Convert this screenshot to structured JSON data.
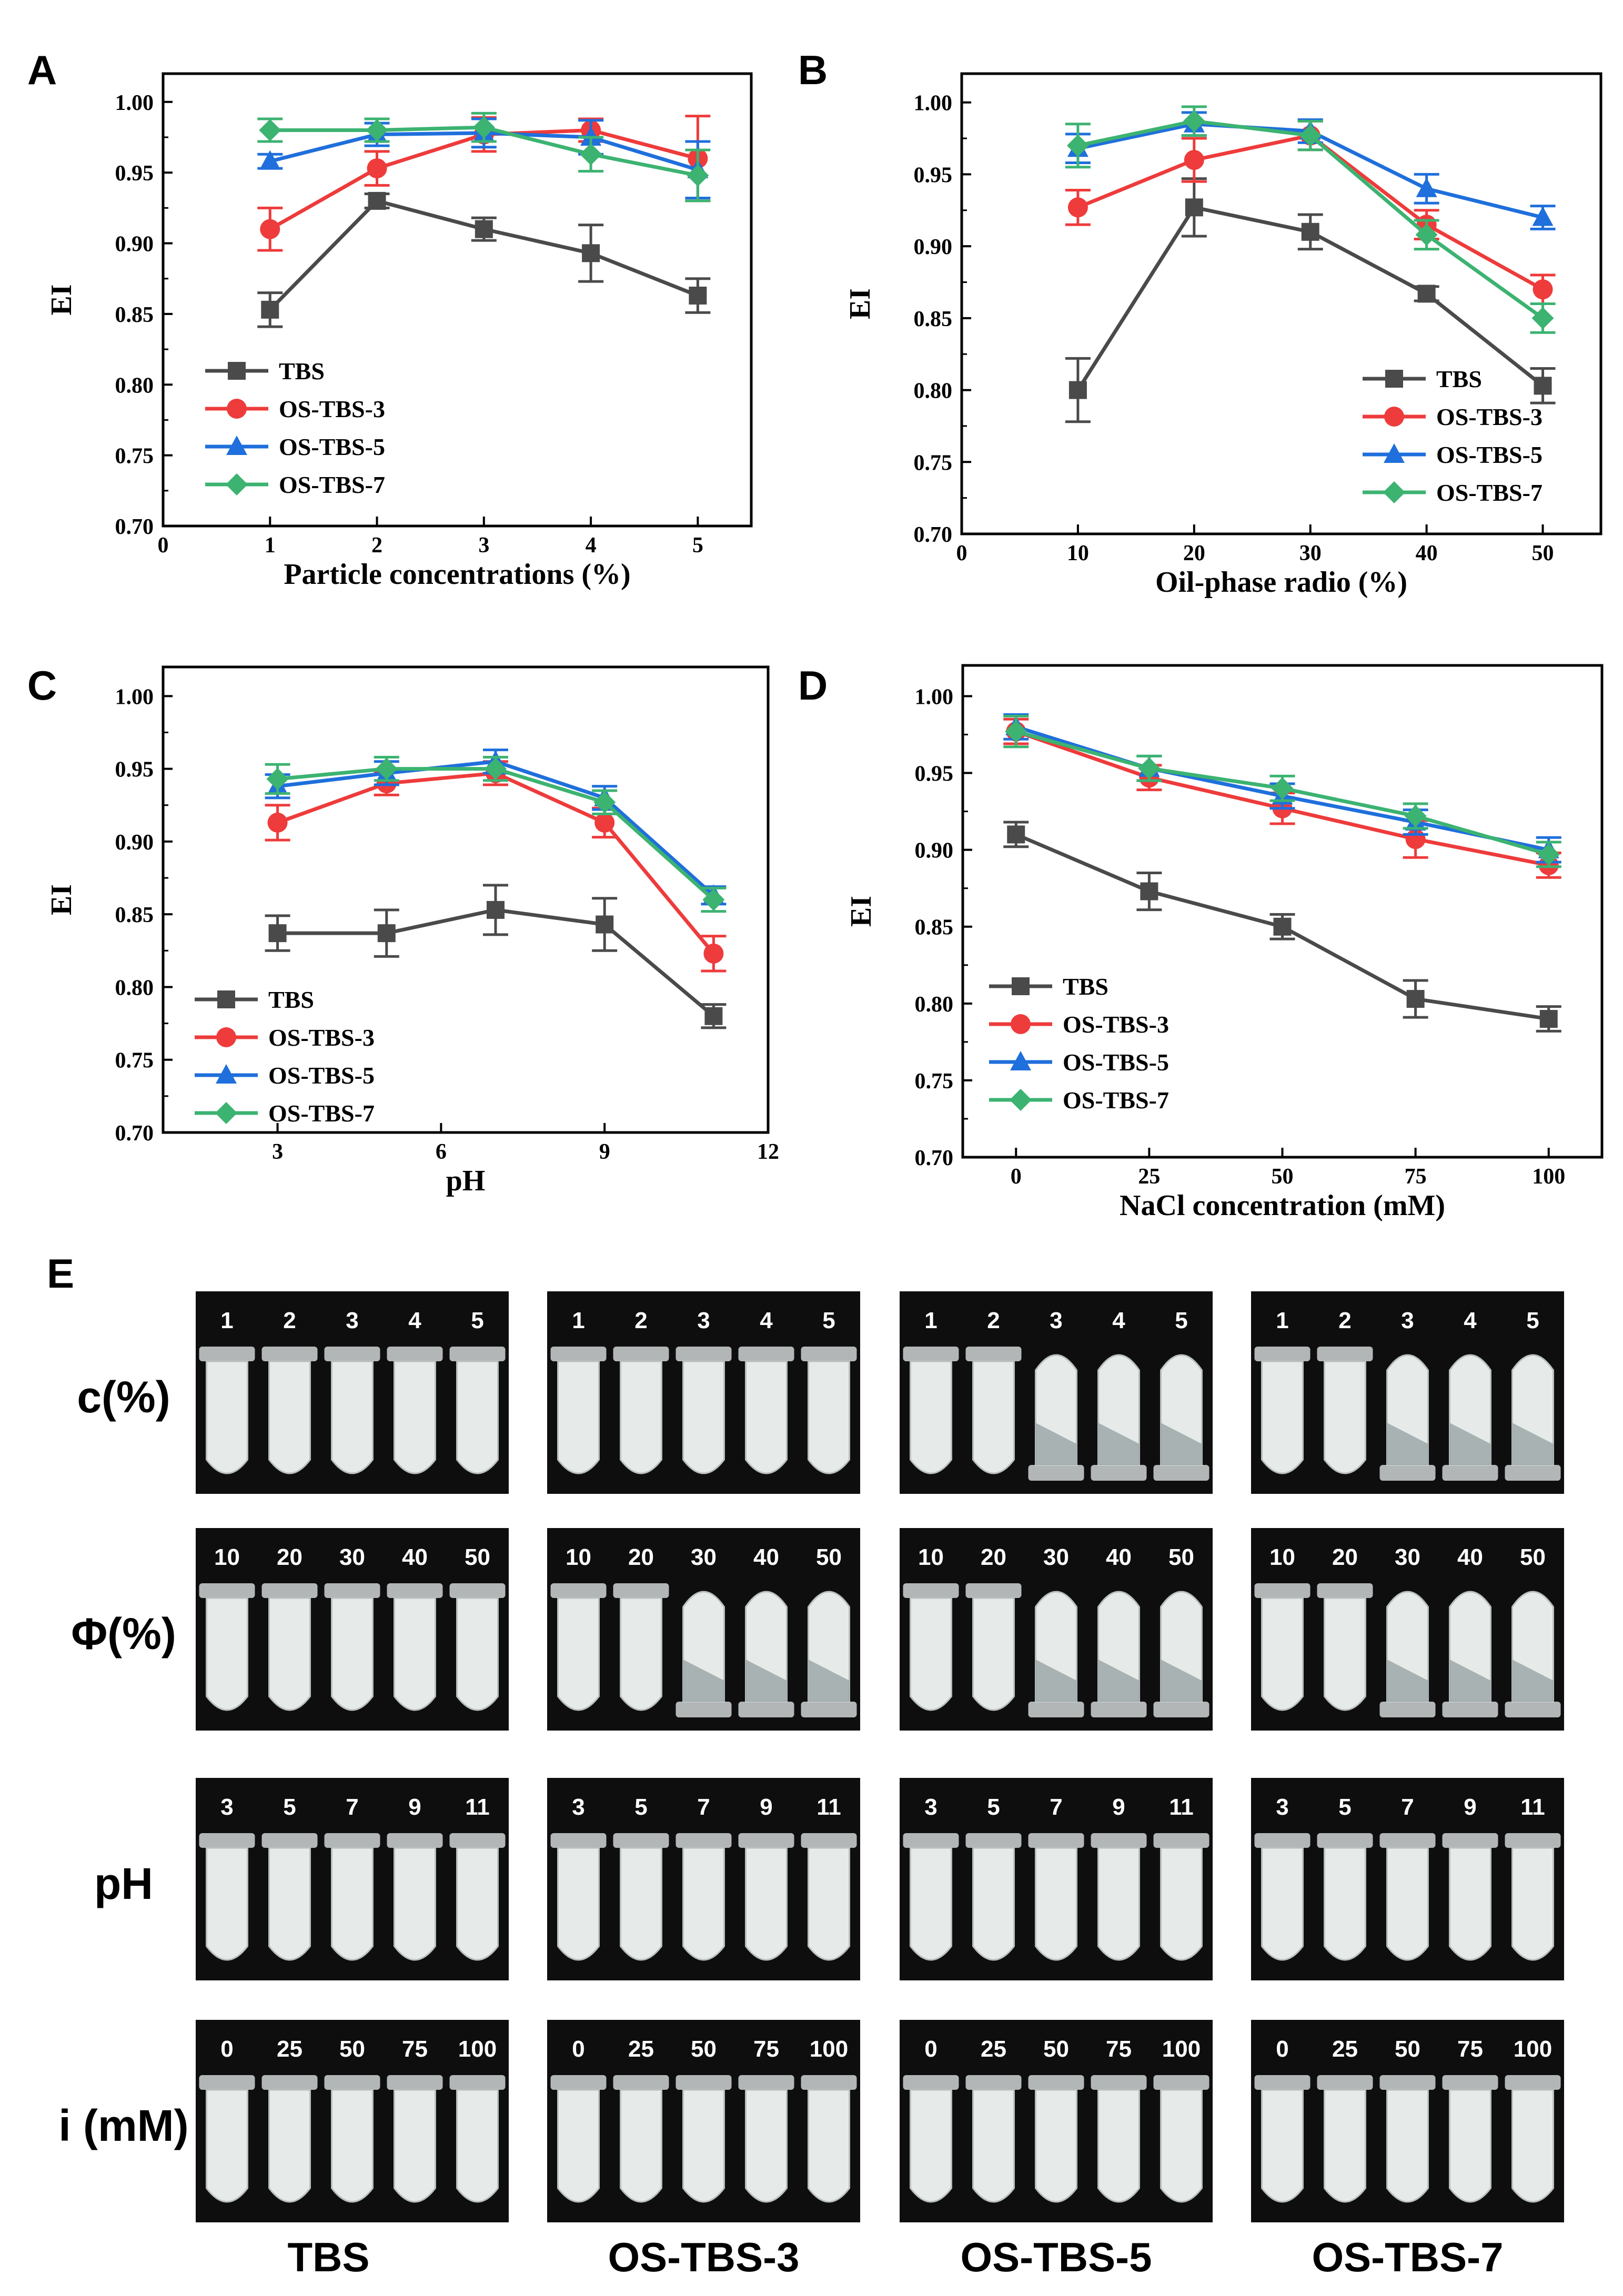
{
  "colors": {
    "TBS": "#4a4a4a",
    "OS-TBS-3": "#ee3b3b",
    "OS-TBS-5": "#1f6fdc",
    "OS-TBS-7": "#3cb371",
    "photo_bg": "#0e0e0e",
    "tube_fill": "#e6eae8",
    "tube_wall": "#b9bfbf"
  },
  "chart_data": [
    {
      "panel": "A",
      "type": "line",
      "title": "",
      "xlabel": "Particle concentrations (%)",
      "ylabel": "EI",
      "xlim": [
        0,
        5.5
      ],
      "ylim": [
        0.7,
        1.02
      ],
      "xticks": [
        0,
        1,
        2,
        3,
        4,
        5
      ],
      "xtick_labels": [
        "0",
        "1",
        "2",
        "3",
        "4",
        "5"
      ],
      "yticks": [
        0.7,
        0.75,
        0.8,
        0.85,
        0.9,
        0.95,
        1.0
      ],
      "ytick_labels": [
        "0.70",
        "0.75",
        "0.80",
        "0.85",
        "0.90",
        "0.95",
        "1.00"
      ],
      "legend_position": "bottom-left",
      "x": [
        1,
        2,
        3,
        4,
        5
      ],
      "series": [
        {
          "name": "TBS",
          "marker": "square",
          "values": [
            0.853,
            0.93,
            0.91,
            0.893,
            0.863
          ],
          "errors": [
            0.012,
            0.005,
            0.008,
            0.02,
            0.012
          ]
        },
        {
          "name": "OS-TBS-3",
          "marker": "circle",
          "values": [
            0.91,
            0.953,
            0.977,
            0.98,
            0.96
          ],
          "errors": [
            0.015,
            0.012,
            0.012,
            0.008,
            0.03
          ]
        },
        {
          "name": "OS-TBS-5",
          "marker": "triangle",
          "values": [
            0.958,
            0.977,
            0.978,
            0.975,
            0.952
          ],
          "errors": [
            0.005,
            0.008,
            0.01,
            0.012,
            0.02
          ]
        },
        {
          "name": "OS-TBS-7",
          "marker": "diamond",
          "values": [
            0.98,
            0.98,
            0.982,
            0.963,
            0.948
          ],
          "errors": [
            0.008,
            0.008,
            0.01,
            0.012,
            0.018
          ]
        }
      ]
    },
    {
      "panel": "B",
      "type": "line",
      "title": "",
      "xlabel": "Oil-phase radio (%)",
      "ylabel": "EI",
      "xlim": [
        0,
        55
      ],
      "ylim": [
        0.7,
        1.02
      ],
      "xticks": [
        0,
        10,
        20,
        30,
        40,
        50
      ],
      "xtick_labels": [
        "0",
        "10",
        "20",
        "30",
        "40",
        "50"
      ],
      "yticks": [
        0.7,
        0.75,
        0.8,
        0.85,
        0.9,
        0.95,
        1.0
      ],
      "ytick_labels": [
        "0.70",
        "0.75",
        "0.80",
        "0.85",
        "0.90",
        "0.95",
        "1.00"
      ],
      "legend_position": "bottom-right",
      "x": [
        10,
        20,
        30,
        40,
        50
      ],
      "series": [
        {
          "name": "TBS",
          "marker": "square",
          "values": [
            0.8,
            0.927,
            0.91,
            0.867,
            0.803
          ],
          "errors": [
            0.022,
            0.02,
            0.012,
            0.005,
            0.012
          ]
        },
        {
          "name": "OS-TBS-3",
          "marker": "circle",
          "values": [
            0.927,
            0.96,
            0.977,
            0.915,
            0.87
          ],
          "errors": [
            0.012,
            0.015,
            0.01,
            0.01,
            0.01
          ]
        },
        {
          "name": "OS-TBS-5",
          "marker": "triangle",
          "values": [
            0.968,
            0.985,
            0.98,
            0.94,
            0.92
          ],
          "errors": [
            0.01,
            0.008,
            0.008,
            0.01,
            0.008
          ]
        },
        {
          "name": "OS-TBS-7",
          "marker": "diamond",
          "values": [
            0.97,
            0.987,
            0.977,
            0.908,
            0.85
          ],
          "errors": [
            0.015,
            0.01,
            0.01,
            0.01,
            0.01
          ]
        }
      ]
    },
    {
      "panel": "C",
      "type": "line",
      "title": "",
      "xlabel": "pH",
      "ylabel": "EI",
      "xlim": [
        0.9,
        12
      ],
      "ylim": [
        0.7,
        1.02
      ],
      "xticks": [
        3,
        6,
        9,
        12
      ],
      "xtick_labels": [
        "3",
        "6",
        "9",
        "12"
      ],
      "yticks": [
        0.7,
        0.75,
        0.8,
        0.85,
        0.9,
        0.95,
        1.0
      ],
      "ytick_labels": [
        "0.70",
        "0.75",
        "0.80",
        "0.85",
        "0.90",
        "0.95",
        "1.00"
      ],
      "legend_position": "bottom-left",
      "x": [
        3,
        5,
        7,
        9,
        11
      ],
      "series": [
        {
          "name": "TBS",
          "marker": "square",
          "values": [
            0.837,
            0.837,
            0.853,
            0.843,
            0.78
          ],
          "errors": [
            0.012,
            0.016,
            0.017,
            0.018,
            0.008
          ]
        },
        {
          "name": "OS-TBS-3",
          "marker": "circle",
          "values": [
            0.913,
            0.94,
            0.947,
            0.913,
            0.823
          ],
          "errors": [
            0.012,
            0.008,
            0.008,
            0.01,
            0.012
          ]
        },
        {
          "name": "OS-TBS-5",
          "marker": "triangle",
          "values": [
            0.938,
            0.947,
            0.955,
            0.93,
            0.863
          ],
          "errors": [
            0.008,
            0.008,
            0.008,
            0.008,
            0.006
          ]
        },
        {
          "name": "OS-TBS-7",
          "marker": "diamond",
          "values": [
            0.943,
            0.95,
            0.95,
            0.927,
            0.86
          ],
          "errors": [
            0.01,
            0.008,
            0.008,
            0.008,
            0.008
          ]
        }
      ]
    },
    {
      "panel": "D",
      "type": "line",
      "title": "",
      "xlabel": "NaCl concentration (mM)",
      "ylabel": "EI",
      "xlim": [
        -10,
        110
      ],
      "ylim": [
        0.7,
        1.02
      ],
      "xticks": [
        0,
        25,
        50,
        75,
        100
      ],
      "xtick_labels": [
        "0",
        "25",
        "50",
        "75",
        "100"
      ],
      "yticks": [
        0.7,
        0.75,
        0.8,
        0.85,
        0.9,
        0.95,
        1.0
      ],
      "ytick_labels": [
        "0.70",
        "0.75",
        "0.80",
        "0.85",
        "0.90",
        "0.95",
        "1.00"
      ],
      "legend_position": "bottom-left",
      "x": [
        0,
        25,
        50,
        75,
        100
      ],
      "series": [
        {
          "name": "TBS",
          "marker": "square",
          "values": [
            0.91,
            0.873,
            0.85,
            0.803,
            0.79
          ],
          "errors": [
            0.008,
            0.012,
            0.008,
            0.012,
            0.008
          ]
        },
        {
          "name": "OS-TBS-3",
          "marker": "circle",
          "values": [
            0.977,
            0.947,
            0.927,
            0.907,
            0.89
          ],
          "errors": [
            0.008,
            0.008,
            0.01,
            0.012,
            0.008
          ]
        },
        {
          "name": "OS-TBS-5",
          "marker": "triangle",
          "values": [
            0.98,
            0.953,
            0.935,
            0.918,
            0.9
          ],
          "errors": [
            0.008,
            0.008,
            0.008,
            0.008,
            0.008
          ]
        },
        {
          "name": "OS-TBS-7",
          "marker": "diamond",
          "values": [
            0.977,
            0.953,
            0.94,
            0.922,
            0.897
          ],
          "errors": [
            0.01,
            0.008,
            0.008,
            0.008,
            0.008
          ]
        }
      ]
    }
  ],
  "panel_e": {
    "label": "E",
    "rows": [
      {
        "label": "c(%)",
        "groups": [
          {
            "numbers": [
              "1",
              "2",
              "3",
              "4",
              "5"
            ],
            "inverted": [
              false,
              false,
              false,
              false,
              false
            ]
          },
          {
            "numbers": [
              "1",
              "2",
              "3",
              "4",
              "5"
            ],
            "inverted": [
              false,
              false,
              false,
              false,
              false
            ]
          },
          {
            "numbers": [
              "1",
              "2",
              "3",
              "4",
              "5"
            ],
            "inverted": [
              false,
              false,
              true,
              true,
              true
            ]
          },
          {
            "numbers": [
              "1",
              "2",
              "3",
              "4",
              "5"
            ],
            "inverted": [
              false,
              false,
              true,
              true,
              true
            ]
          }
        ]
      },
      {
        "label": "Φ(%)",
        "groups": [
          {
            "numbers": [
              "10",
              "20",
              "30",
              "40",
              "50"
            ],
            "inverted": [
              false,
              false,
              false,
              false,
              false
            ]
          },
          {
            "numbers": [
              "10",
              "20",
              "30",
              "40",
              "50"
            ],
            "inverted": [
              false,
              false,
              true,
              true,
              true
            ]
          },
          {
            "numbers": [
              "10",
              "20",
              "30",
              "40",
              "50"
            ],
            "inverted": [
              false,
              false,
              true,
              true,
              true
            ]
          },
          {
            "numbers": [
              "10",
              "20",
              "30",
              "40",
              "50"
            ],
            "inverted": [
              false,
              false,
              true,
              true,
              true
            ]
          }
        ]
      },
      {
        "label": "pH",
        "groups": [
          {
            "numbers": [
              "3",
              "5",
              "7",
              "9",
              "11"
            ],
            "inverted": [
              false,
              false,
              false,
              false,
              false
            ]
          },
          {
            "numbers": [
              "3",
              "5",
              "7",
              "9",
              "11"
            ],
            "inverted": [
              false,
              false,
              false,
              false,
              false
            ]
          },
          {
            "numbers": [
              "3",
              "5",
              "7",
              "9",
              "11"
            ],
            "inverted": [
              false,
              false,
              false,
              false,
              false
            ]
          },
          {
            "numbers": [
              "3",
              "5",
              "7",
              "9",
              "11"
            ],
            "inverted": [
              false,
              false,
              false,
              false,
              false
            ]
          }
        ]
      },
      {
        "label": "i (mM)",
        "groups": [
          {
            "numbers": [
              "0",
              "25",
              "50",
              "75",
              "100"
            ],
            "inverted": [
              false,
              false,
              false,
              false,
              false
            ]
          },
          {
            "numbers": [
              "0",
              "25",
              "50",
              "75",
              "100"
            ],
            "inverted": [
              false,
              false,
              false,
              false,
              false
            ]
          },
          {
            "numbers": [
              "0",
              "25",
              "50",
              "75",
              "100"
            ],
            "inverted": [
              false,
              false,
              false,
              false,
              false
            ]
          },
          {
            "numbers": [
              "0",
              "25",
              "50",
              "75",
              "100"
            ],
            "inverted": [
              false,
              false,
              false,
              false,
              false
            ]
          }
        ]
      }
    ],
    "columns": [
      "TBS",
      "OS-TBS-3",
      "OS-TBS-5",
      "OS-TBS-7"
    ]
  }
}
